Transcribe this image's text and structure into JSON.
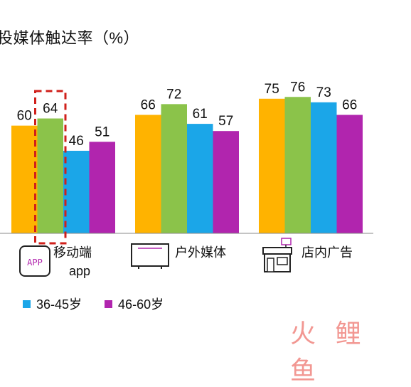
{
  "title": "投媒体触达率（%）",
  "chart_data": {
    "type": "bar",
    "categories": [
      "移动端app",
      "户外媒体",
      "店内广告"
    ],
    "category_icons": [
      "app-icon",
      "tv-screen-icon",
      "storefront-icon"
    ],
    "category_label_lines": [
      [
        "移动端",
        "app"
      ],
      [
        "户外媒体"
      ],
      [
        "店内广告"
      ]
    ],
    "series": [
      {
        "name": "",
        "color": "#FFB300",
        "values": [
          60,
          66,
          75
        ]
      },
      {
        "name": "",
        "color": "#8BC34A",
        "values": [
          64,
          72,
          76
        ]
      },
      {
        "name": "36-45岁",
        "color": "#1BA6E8",
        "values": [
          46,
          61,
          73
        ]
      },
      {
        "name": "46-60岁",
        "color": "#B125AE",
        "values": [
          51,
          57,
          66
        ]
      }
    ],
    "highlight": {
      "category": "移动端app",
      "series_index": 1,
      "color": "#D0201B"
    },
    "grid": false,
    "legend": "bottom-left"
  },
  "app_icon_text": "APP",
  "watermark": "火鲤鱼"
}
